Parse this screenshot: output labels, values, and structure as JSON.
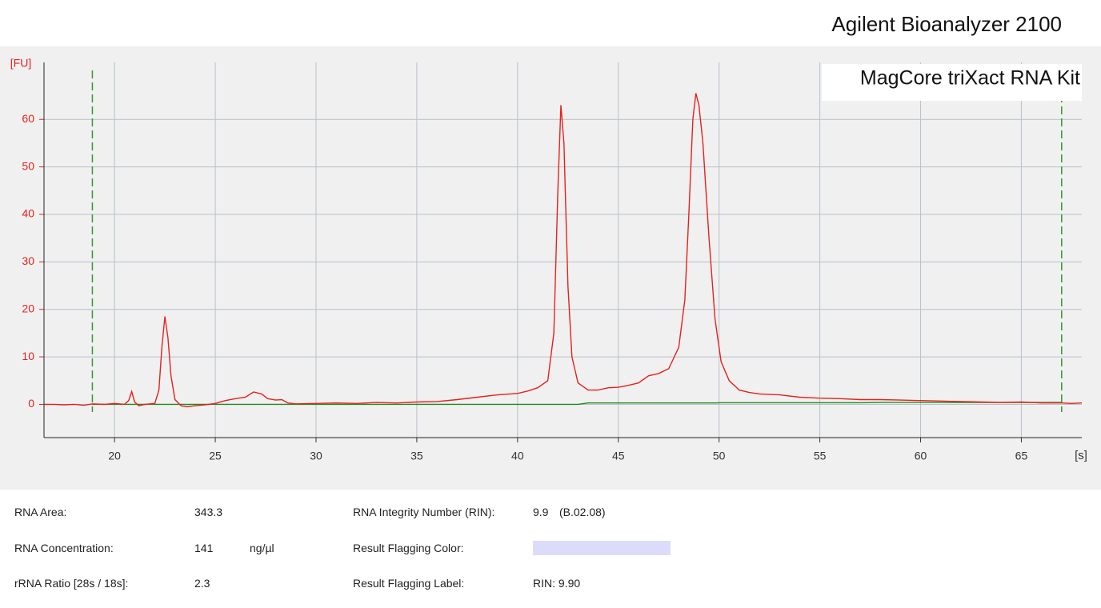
{
  "chart_data": {
    "type": "line",
    "title": "Agilent Bioanalyzer 2100",
    "annotation": "MagCore triXact RNA Kit",
    "xlabel": "[s]",
    "ylabel": "[FU]",
    "xlim": [
      16.5,
      68
    ],
    "ylim": [
      -7,
      72
    ],
    "xticks": [
      20,
      25,
      30,
      35,
      40,
      45,
      50,
      55,
      60,
      65
    ],
    "yticks": [
      0,
      10,
      20,
      30,
      40,
      50,
      60
    ],
    "grid": true,
    "markers": {
      "values": [
        18.9,
        67
      ],
      "color": "#2e9a2e"
    },
    "x": [
      16.5,
      17,
      17.5,
      18,
      18.5,
      18.9,
      19.5,
      20,
      20.5,
      20.7,
      20.85,
      21,
      21.2,
      21.5,
      22,
      22.2,
      22.35,
      22.5,
      22.65,
      22.8,
      23,
      23.3,
      23.6,
      24,
      24.5,
      25,
      25.5,
      26,
      26.5,
      26.9,
      27.3,
      27.6,
      28,
      28.3,
      28.6,
      29,
      30,
      31,
      32,
      33,
      34,
      35,
      36,
      37,
      38,
      39,
      40,
      40.5,
      41,
      41.5,
      41.8,
      42,
      42.15,
      42.3,
      42.5,
      42.7,
      43,
      43.5,
      44,
      44.5,
      45,
      45.5,
      46,
      46.5,
      47,
      47.5,
      48,
      48.3,
      48.5,
      48.7,
      48.85,
      49,
      49.2,
      49.5,
      49.8,
      50.1,
      50.5,
      51,
      51.5,
      52,
      53,
      54,
      55,
      56,
      57,
      58,
      59,
      60,
      61,
      62,
      63,
      64,
      65,
      66,
      67,
      67.5,
      68
    ],
    "series": [
      {
        "color": "#e8201c",
        "values": [
          0,
          0,
          -0.1,
          0,
          -0.2,
          0.1,
          0,
          0.2,
          0,
          0.8,
          2.7,
          0.5,
          -0.3,
          0,
          0.2,
          3,
          12,
          18.5,
          14,
          6,
          1,
          -0.3,
          -0.5,
          -0.3,
          -0.1,
          0.2,
          0.8,
          1.2,
          1.5,
          2.6,
          2.2,
          1.2,
          0.9,
          1,
          0.3,
          0.1,
          0.2,
          0.3,
          0.2,
          0.4,
          0.3,
          0.5,
          0.6,
          1,
          1.5,
          2,
          2.3,
          2.8,
          3.5,
          5,
          15,
          45,
          63,
          55,
          25,
          10,
          4.5,
          3,
          3,
          3.5,
          3.6,
          4,
          4.5,
          6,
          6.5,
          7.5,
          12,
          22,
          40,
          60,
          65.5,
          63,
          55,
          35,
          18,
          9,
          5,
          3,
          2.5,
          2.2,
          2,
          1.5,
          1.3,
          1.2,
          1,
          1,
          0.9,
          0.8,
          0.7,
          0.6,
          0.5,
          0.4,
          0.5,
          0.3,
          0.3,
          0.2,
          0.3
        ]
      },
      {
        "color": "#1f8a1f",
        "values": [
          null,
          null,
          null,
          null,
          null,
          0,
          0,
          0,
          0,
          0,
          0,
          0,
          0,
          0,
          0,
          0,
          0,
          0,
          0,
          0,
          0,
          0,
          0,
          0,
          0,
          0,
          0,
          0,
          0,
          0,
          0,
          0,
          0,
          0,
          0,
          0,
          0,
          0,
          0,
          0,
          0,
          0,
          0,
          0,
          0,
          0,
          0,
          0,
          0,
          0,
          0,
          0,
          0,
          0,
          0,
          0,
          0,
          0.3,
          0.3,
          0.3,
          0.3,
          0.3,
          0.3,
          0.3,
          0.3,
          0.3,
          0.3,
          0.3,
          0.3,
          0.3,
          0.3,
          0.3,
          0.3,
          0.3,
          0.3,
          0.35,
          0.35,
          0.35,
          0.35,
          0.35,
          0.35,
          0.35,
          0.35,
          0.35,
          0.35,
          0.4,
          0.4,
          0.4,
          0.4,
          0.4,
          0.4,
          0.4,
          0.4,
          0.4,
          0.4,
          null,
          null
        ]
      }
    ]
  },
  "results": {
    "left": [
      {
        "label": "RNA Area:",
        "value": "343.3"
      },
      {
        "label": "RNA Concentration:",
        "value": "141",
        "unit": "ng/µl"
      },
      {
        "label": "rRNA Ratio [28s / 18s]:",
        "value": "2.3"
      }
    ],
    "right": [
      {
        "label": "RNA Integrity Number (RIN):",
        "value": "9.9",
        "note": "(B.02.08)"
      },
      {
        "label": "Result Flagging Color:",
        "color": "#dcdcfa"
      },
      {
        "label": "Result Flagging Label:",
        "value": "RIN: 9.90"
      }
    ]
  }
}
